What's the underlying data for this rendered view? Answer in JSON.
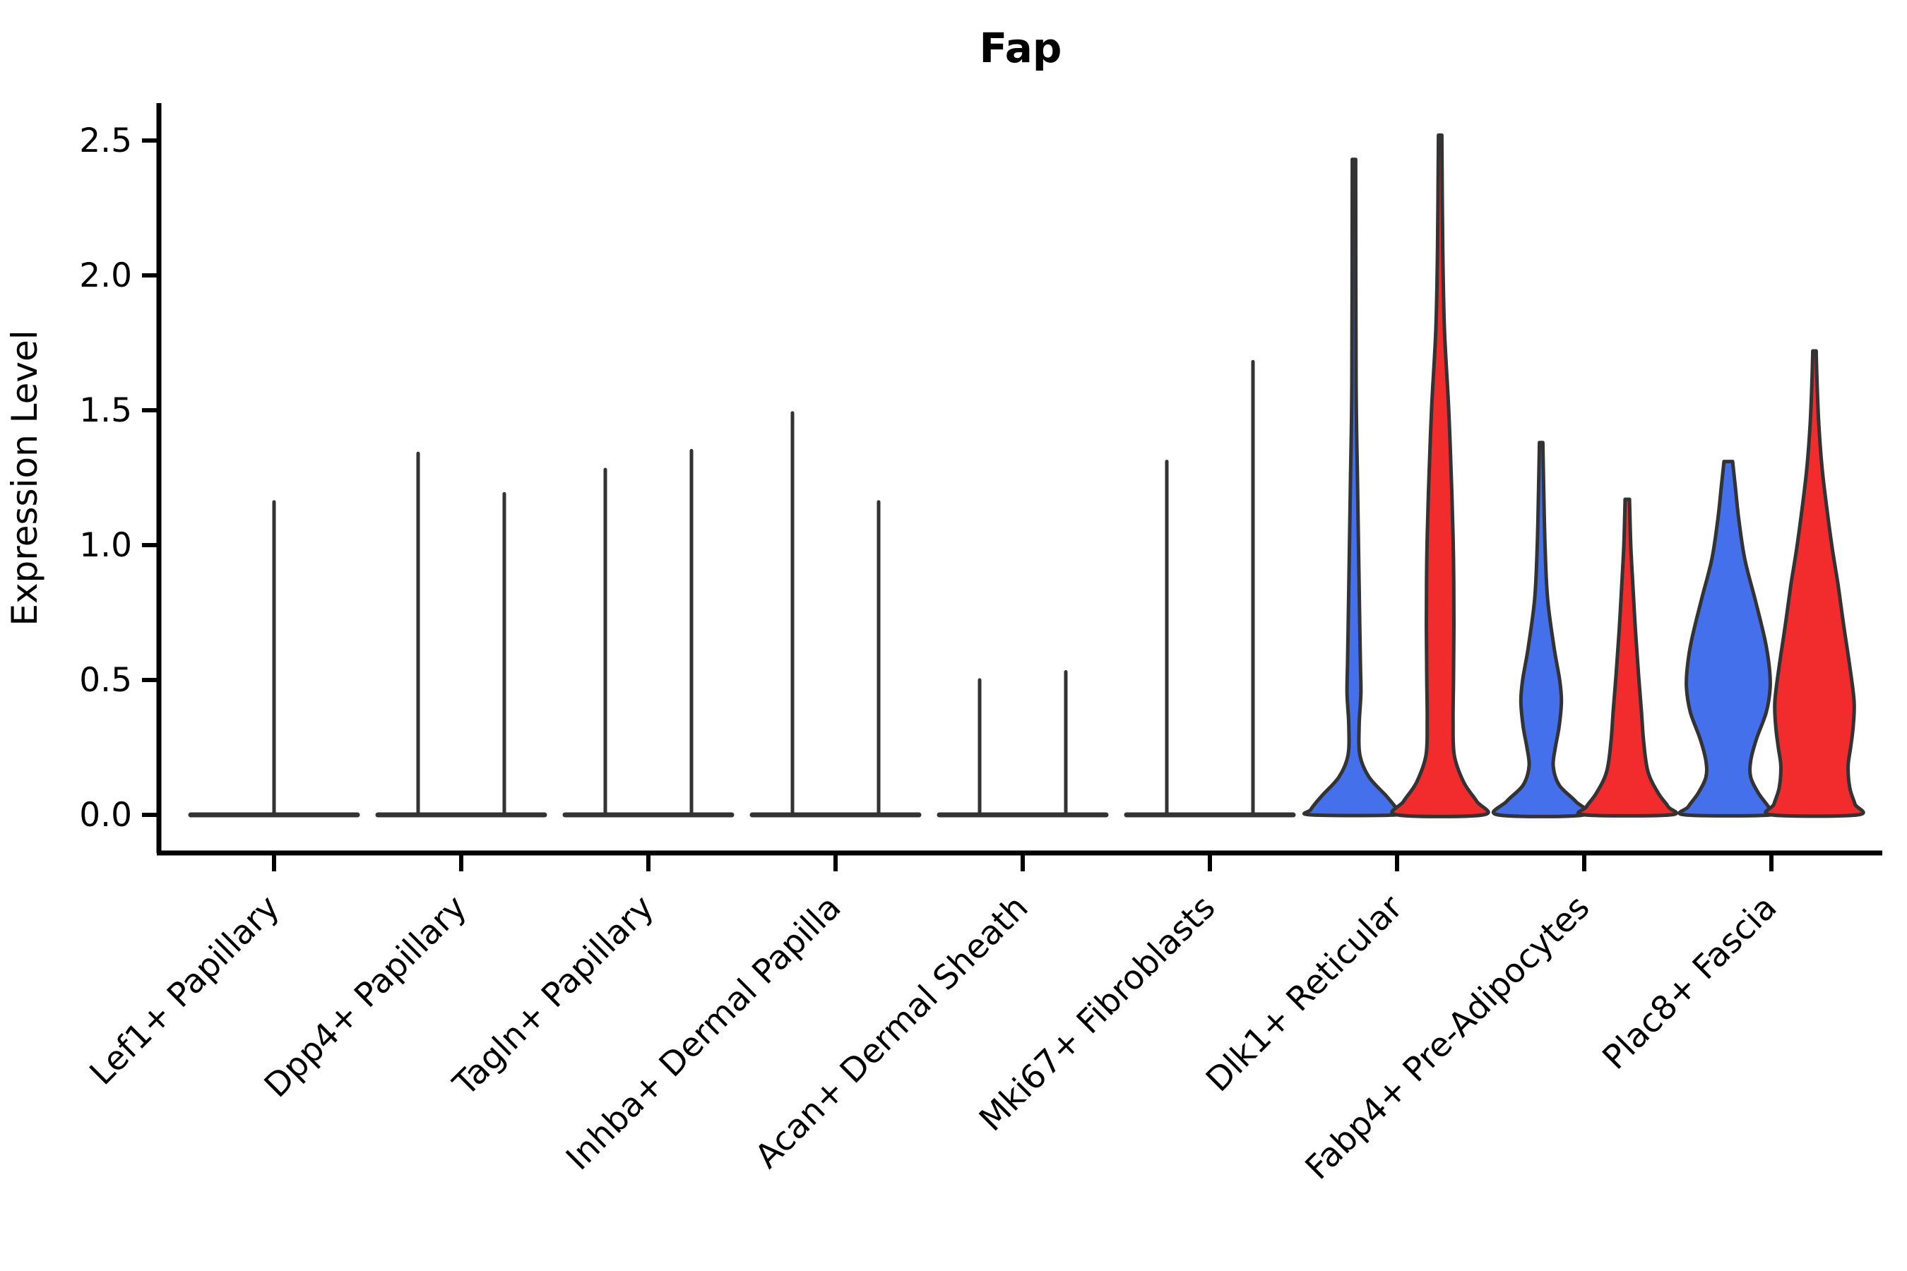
{
  "chart_data": {
    "type": "violin",
    "title": "Fap",
    "ylabel": "Expression Level",
    "legend": "none",
    "grid": false,
    "y_axis": {
      "tick_labels": [
        "0.0",
        "0.5",
        "1.0",
        "1.5",
        "2.0",
        "2.5"
      ],
      "tick_values": [
        0.0,
        0.5,
        1.0,
        1.5,
        2.0,
        2.5
      ],
      "ylim": [
        -0.14,
        2.64
      ]
    },
    "categories": [
      "Lef1+ Papillary",
      "Dpp4+ Papillary",
      "Tagln+ Papillary",
      "Inhba+ Dermal Papilla",
      "Acan+ Dermal Sheath",
      "Mki67+ Fibroblasts",
      "Dlk1+ Reticular",
      "Fabp4+ Pre-Adipocytes",
      "Plac8+ Fascia"
    ],
    "series": [
      "blue",
      "red"
    ],
    "colors": {
      "blue": "#4470EC",
      "red": "#F22C2C",
      "outline": "#333333",
      "axis": "#000000"
    },
    "violins": [
      {
        "category": "Lef1+ Papillary",
        "single": true,
        "blue": {
          "max": 1.16,
          "shape": "spike"
        },
        "red": null,
        "note": "one centered spike only; flat zero line across full slot"
      },
      {
        "category": "Dpp4+ Papillary",
        "blue": {
          "max": 1.34,
          "shape": "spike"
        },
        "red": {
          "max": 1.19,
          "shape": "spike"
        }
      },
      {
        "category": "Tagln+ Papillary",
        "blue": {
          "max": 1.28,
          "shape": "spike"
        },
        "red": {
          "max": 1.35,
          "shape": "spike"
        }
      },
      {
        "category": "Inhba+ Dermal Papilla",
        "blue": {
          "max": 1.49,
          "shape": "spike"
        },
        "red": {
          "max": 1.16,
          "shape": "spike"
        }
      },
      {
        "category": "Acan+ Dermal Sheath",
        "blue": {
          "max": 0.5,
          "shape": "spike"
        },
        "red": {
          "max": 0.53,
          "shape": "spike"
        }
      },
      {
        "category": "Mki67+ Fibroblasts",
        "blue": {
          "max": 1.31,
          "shape": "spike"
        },
        "red": {
          "max": 1.68,
          "shape": "spike"
        }
      },
      {
        "category": "Dlk1+ Reticular",
        "blue": {
          "max": 2.43,
          "shape": "body",
          "profile": [
            [
              2.43,
              0.04
            ],
            [
              1.6,
              0.05
            ],
            [
              1.25,
              0.08
            ],
            [
              0.95,
              0.11
            ],
            [
              0.75,
              0.13
            ],
            [
              0.55,
              0.15
            ],
            [
              0.45,
              0.16
            ],
            [
              0.33,
              0.12
            ],
            [
              0.22,
              0.14
            ],
            [
              0.14,
              0.35
            ],
            [
              0.07,
              0.75
            ],
            [
              0.02,
              1.0
            ],
            [
              0.0,
              1.0
            ]
          ]
        },
        "red": {
          "max": 2.52,
          "shape": "body",
          "profile": [
            [
              2.52,
              0.04
            ],
            [
              2.1,
              0.06
            ],
            [
              1.8,
              0.1
            ],
            [
              1.5,
              0.2
            ],
            [
              1.2,
              0.27
            ],
            [
              0.95,
              0.31
            ],
            [
              0.7,
              0.32
            ],
            [
              0.5,
              0.31
            ],
            [
              0.35,
              0.3
            ],
            [
              0.22,
              0.33
            ],
            [
              0.12,
              0.55
            ],
            [
              0.05,
              0.85
            ],
            [
              0.0,
              1.0
            ]
          ]
        }
      },
      {
        "category": "Fabp4+ Pre-Adipocytes",
        "blue": {
          "max": 1.38,
          "shape": "body",
          "profile": [
            [
              1.38,
              0.04
            ],
            [
              1.2,
              0.06
            ],
            [
              1.0,
              0.09
            ],
            [
              0.8,
              0.15
            ],
            [
              0.62,
              0.3
            ],
            [
              0.5,
              0.43
            ],
            [
              0.42,
              0.47
            ],
            [
              0.33,
              0.42
            ],
            [
              0.25,
              0.33
            ],
            [
              0.18,
              0.28
            ],
            [
              0.11,
              0.42
            ],
            [
              0.05,
              0.8
            ],
            [
              0.0,
              1.0
            ]
          ]
        },
        "red": {
          "max": 1.17,
          "shape": "body",
          "profile": [
            [
              1.17,
              0.05
            ],
            [
              1.0,
              0.08
            ],
            [
              0.85,
              0.13
            ],
            [
              0.68,
              0.19
            ],
            [
              0.52,
              0.26
            ],
            [
              0.38,
              0.33
            ],
            [
              0.27,
              0.38
            ],
            [
              0.16,
              0.48
            ],
            [
              0.08,
              0.72
            ],
            [
              0.03,
              0.95
            ],
            [
              0.0,
              1.0
            ]
          ]
        }
      },
      {
        "category": "Plac8+ Fascia",
        "blue": {
          "max": 1.31,
          "shape": "body",
          "profile": [
            [
              1.31,
              0.1
            ],
            [
              1.22,
              0.16
            ],
            [
              1.1,
              0.24
            ],
            [
              0.95,
              0.38
            ],
            [
              0.8,
              0.62
            ],
            [
              0.65,
              0.85
            ],
            [
              0.55,
              0.95
            ],
            [
              0.47,
              0.97
            ],
            [
              0.38,
              0.88
            ],
            [
              0.28,
              0.65
            ],
            [
              0.2,
              0.52
            ],
            [
              0.14,
              0.52
            ],
            [
              0.08,
              0.7
            ],
            [
              0.03,
              0.93
            ],
            [
              0.0,
              1.0
            ]
          ]
        },
        "red": {
          "max": 1.72,
          "shape": "body",
          "profile": [
            [
              1.72,
              0.04
            ],
            [
              1.6,
              0.06
            ],
            [
              1.45,
              0.1
            ],
            [
              1.28,
              0.18
            ],
            [
              1.12,
              0.3
            ],
            [
              0.98,
              0.42
            ],
            [
              0.85,
              0.55
            ],
            [
              0.7,
              0.68
            ],
            [
              0.55,
              0.82
            ],
            [
              0.42,
              0.92
            ],
            [
              0.33,
              0.9
            ],
            [
              0.25,
              0.84
            ],
            [
              0.18,
              0.78
            ],
            [
              0.1,
              0.82
            ],
            [
              0.04,
              0.94
            ],
            [
              0.0,
              1.0
            ]
          ]
        }
      }
    ]
  }
}
